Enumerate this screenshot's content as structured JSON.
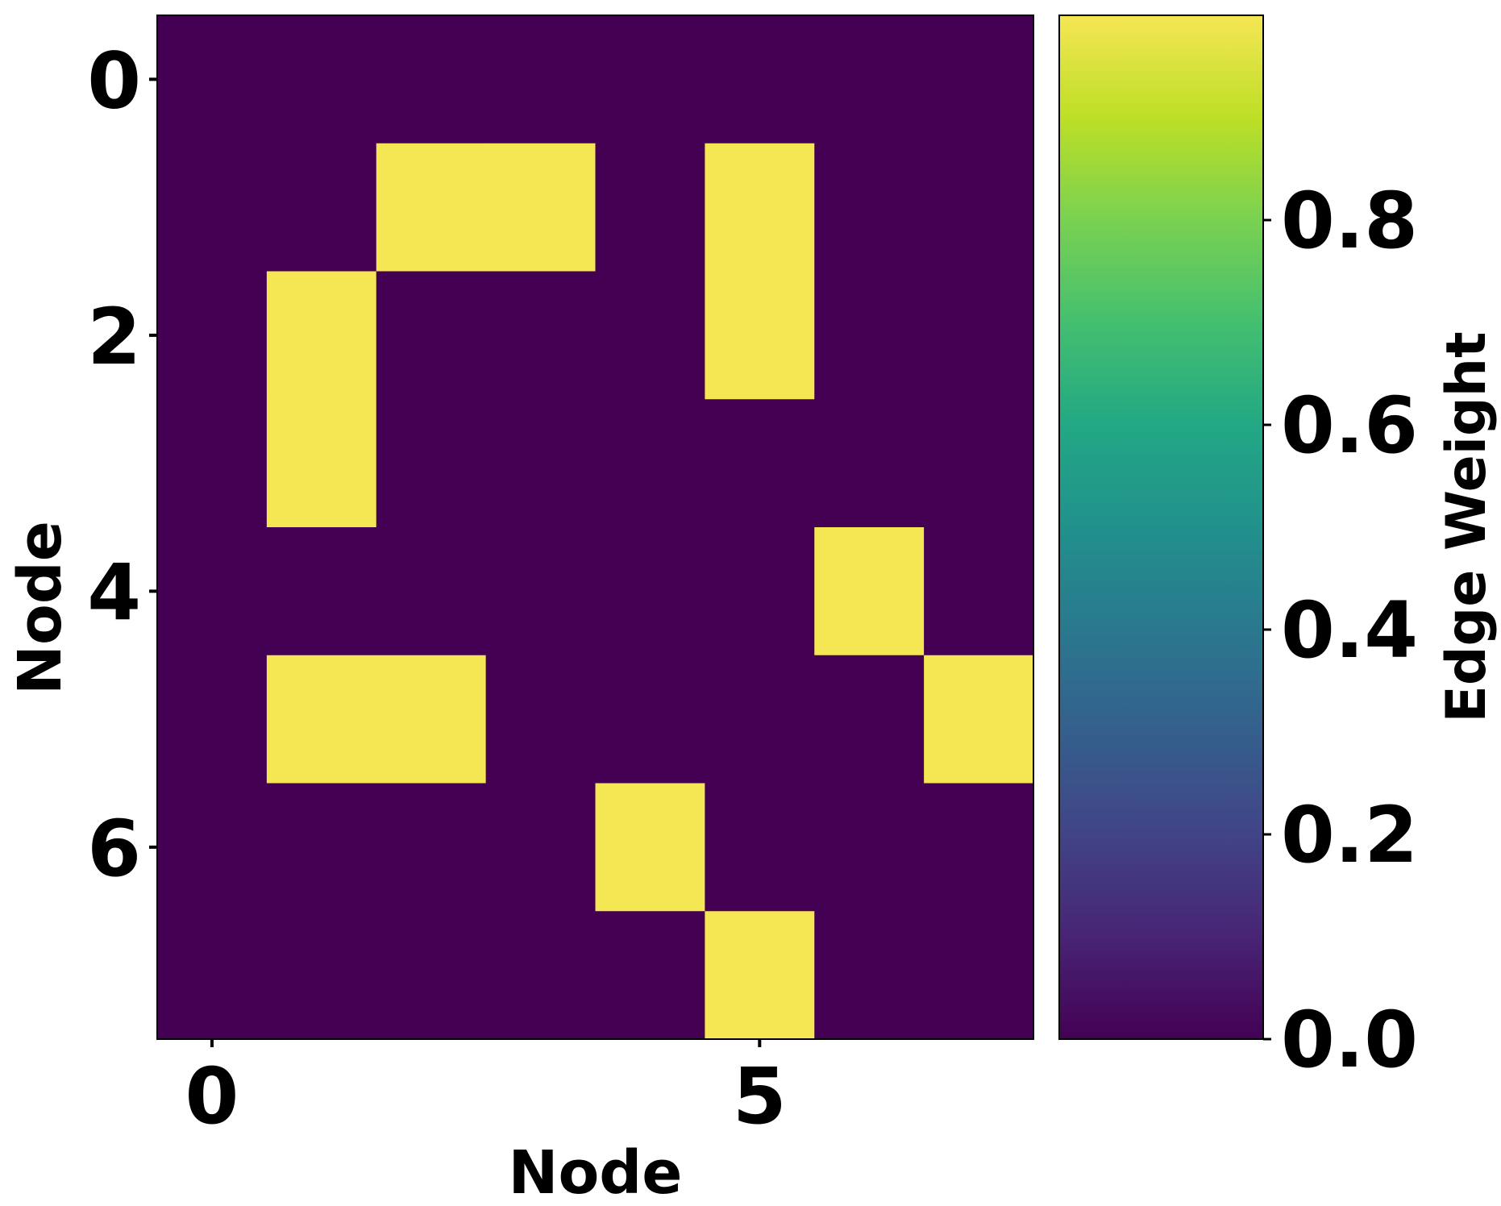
{
  "chart_data": {
    "type": "heatmap",
    "title": "",
    "xlabel": "Node",
    "ylabel": "Node",
    "x_ticks": [
      0,
      5
    ],
    "y_ticks": [
      0,
      2,
      4,
      6
    ],
    "rows": 8,
    "cols": 8,
    "values": [
      [
        0,
        0,
        0,
        0,
        0,
        0,
        0,
        0
      ],
      [
        0,
        0,
        1,
        1,
        0,
        1,
        0,
        0
      ],
      [
        0,
        1,
        0,
        0,
        0,
        1,
        0,
        0
      ],
      [
        0,
        1,
        0,
        0,
        0,
        0,
        0,
        0
      ],
      [
        0,
        0,
        0,
        0,
        0,
        0,
        1,
        0
      ],
      [
        0,
        1,
        1,
        0,
        0,
        0,
        0,
        1
      ],
      [
        0,
        0,
        0,
        0,
        1,
        0,
        0,
        0
      ],
      [
        0,
        0,
        0,
        0,
        0,
        1,
        0,
        0
      ]
    ],
    "colorbar": {
      "label": "Edge Weight",
      "ticks": [
        "0.0",
        "0.2",
        "0.4",
        "0.6",
        "0.8"
      ],
      "tick_values": [
        0.0,
        0.2,
        0.4,
        0.6,
        0.8
      ],
      "range": [
        0,
        1
      ],
      "colormap": "viridis"
    },
    "colors": {
      "low": "#440154",
      "high": "#f5e654"
    }
  }
}
